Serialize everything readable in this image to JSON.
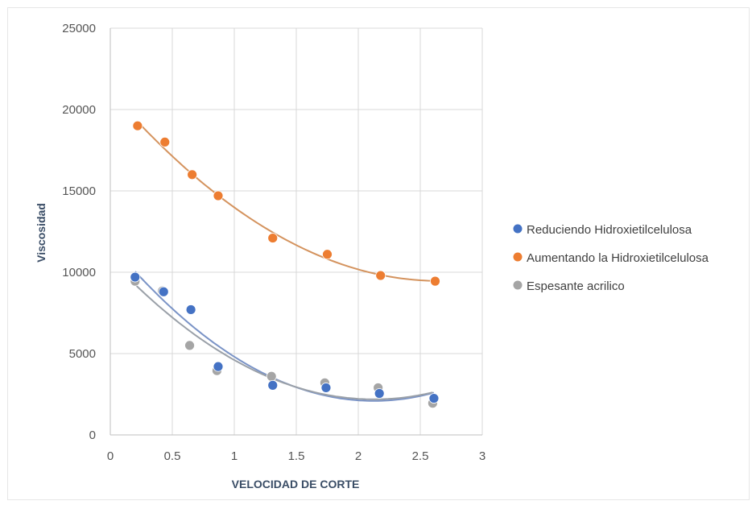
{
  "chart_data": {
    "type": "scatter",
    "title": "",
    "xlabel": "VELOCIDAD DE CORTE",
    "ylabel": "Viscosidad",
    "xlim": [
      0,
      3
    ],
    "ylim": [
      0,
      25000
    ],
    "xticks": [
      0,
      0.5,
      1,
      1.5,
      2,
      2.5,
      3
    ],
    "xtick_labels": [
      "0",
      "0.5",
      "1",
      "1.5",
      "2",
      "2.5",
      "3"
    ],
    "yticks": [
      0,
      5000,
      10000,
      15000,
      20000,
      25000
    ],
    "ytick_labels": [
      "0",
      "5000",
      "10000",
      "15000",
      "20000",
      "25000"
    ],
    "grid": true,
    "legend_position": "right",
    "trendline": "polynomial order 2",
    "series": [
      {
        "name": "Reduciendo Hidroxietilcelulosa",
        "color": "#4472c4",
        "trend_color": "#7a93c6",
        "x": [
          0.2,
          0.43,
          0.65,
          0.87,
          1.31,
          1.74,
          2.17,
          2.61
        ],
        "y": [
          9700,
          8800,
          7700,
          4200,
          3050,
          2900,
          2550,
          2250
        ]
      },
      {
        "name": "Aumentando la Hidroxietilcelulosa",
        "color": "#ed7d31",
        "trend_color": "#d4935e",
        "x": [
          0.22,
          0.44,
          0.66,
          0.87,
          1.31,
          1.75,
          2.18,
          2.62
        ],
        "y": [
          19000,
          18000,
          16000,
          14700,
          12100,
          11100,
          9800,
          9450
        ]
      },
      {
        "name": "Espesante acrilico",
        "color": "#a5a5a5",
        "trend_color": "#9aa0a8",
        "x": [
          0.2,
          0.42,
          0.64,
          0.86,
          1.3,
          1.73,
          2.16,
          2.6
        ],
        "y": [
          9450,
          8850,
          5500,
          3950,
          3600,
          3200,
          2900,
          1950
        ]
      }
    ]
  }
}
